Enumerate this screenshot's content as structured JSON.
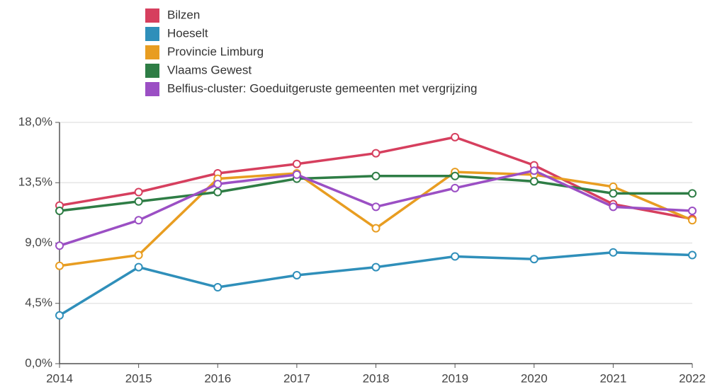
{
  "chart_data": {
    "type": "line",
    "categories": [
      "2014",
      "2015",
      "2016",
      "2017",
      "2018",
      "2019",
      "2020",
      "2021",
      "2022"
    ],
    "series": [
      {
        "name": "Bilzen",
        "color": "#d63f5e",
        "values": [
          11.8,
          12.8,
          14.2,
          14.9,
          15.7,
          16.9,
          14.8,
          11.9,
          10.8
        ]
      },
      {
        "name": "Hoeselt",
        "color": "#2f8fba",
        "values": [
          3.6,
          7.2,
          5.7,
          6.6,
          7.2,
          8.0,
          7.8,
          8.3,
          8.1
        ]
      },
      {
        "name": "Provincie Limburg",
        "color": "#e89d21",
        "values": [
          7.3,
          8.1,
          13.8,
          14.2,
          10.1,
          14.3,
          14.1,
          13.2,
          10.7
        ]
      },
      {
        "name": "Vlaams Gewest",
        "color": "#2e7d45",
        "values": [
          11.4,
          12.1,
          12.8,
          13.8,
          14.0,
          14.0,
          13.6,
          12.7,
          12.7
        ]
      },
      {
        "name": "Belfius-cluster: Goeduitgeruste gemeenten met vergrijzing",
        "color": "#9b4fc4",
        "values": [
          8.8,
          10.7,
          13.4,
          14.1,
          11.7,
          13.1,
          14.4,
          11.7,
          11.4
        ]
      }
    ],
    "ylim": [
      0,
      18
    ],
    "yticks": [
      {
        "value": 0,
        "label": "0,0%"
      },
      {
        "value": 4.5,
        "label": "4,5%"
      },
      {
        "value": 9,
        "label": "9,0%"
      },
      {
        "value": 13.5,
        "label": "13,5%"
      },
      {
        "value": 18,
        "label": "18,0%"
      }
    ],
    "grid": true
  }
}
